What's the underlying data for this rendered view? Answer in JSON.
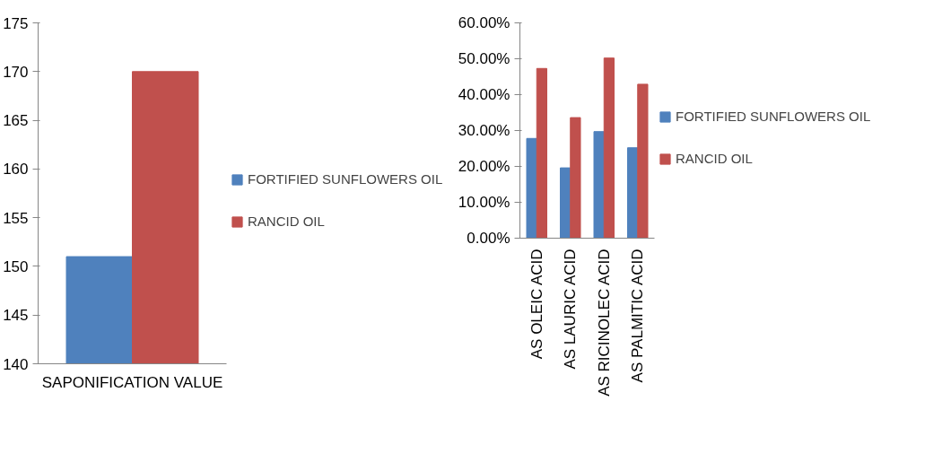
{
  "chart_data": [
    {
      "type": "bar",
      "categories": [
        "SAPONIFICATION VALUE"
      ],
      "ylim": [
        140,
        175
      ],
      "yticks": [
        140,
        145,
        150,
        155,
        160,
        165,
        170,
        175
      ],
      "grid": false,
      "legend": "right",
      "series": [
        {
          "name": "FORTIFIED SUNFLOWERS OIL",
          "color": "#4f81bd",
          "values": [
            151
          ]
        },
        {
          "name": "RANCID OIL",
          "color": "#c0504d",
          "values": [
            170
          ]
        }
      ]
    },
    {
      "type": "bar",
      "categories": [
        "AS OLEIC ACID",
        "AS LAURIC ACID",
        "AS RICINOLEC ACID",
        "AS PALMITIC ACID"
      ],
      "ylim": [
        0,
        0.6
      ],
      "yticks": [
        {
          "value": 0,
          "label": "0.00%"
        },
        {
          "value": 0.1,
          "label": "10.00%"
        },
        {
          "value": 0.2,
          "label": "20.00%"
        },
        {
          "value": 0.3,
          "label": "30.00%"
        },
        {
          "value": 0.4,
          "label": "40.00%"
        },
        {
          "value": 0.5,
          "label": "50.00%"
        },
        {
          "value": 0.6,
          "label": "60.00%"
        }
      ],
      "grid": false,
      "legend": "right",
      "series": [
        {
          "name": "FORTIFIED SUNFLOWERS OIL",
          "color": "#4f81bd",
          "values": [
            0.278,
            0.196,
            0.297,
            0.252
          ]
        },
        {
          "name": "RANCID OIL",
          "color": "#c0504d",
          "values": [
            0.473,
            0.336,
            0.502,
            0.429
          ]
        }
      ]
    }
  ]
}
